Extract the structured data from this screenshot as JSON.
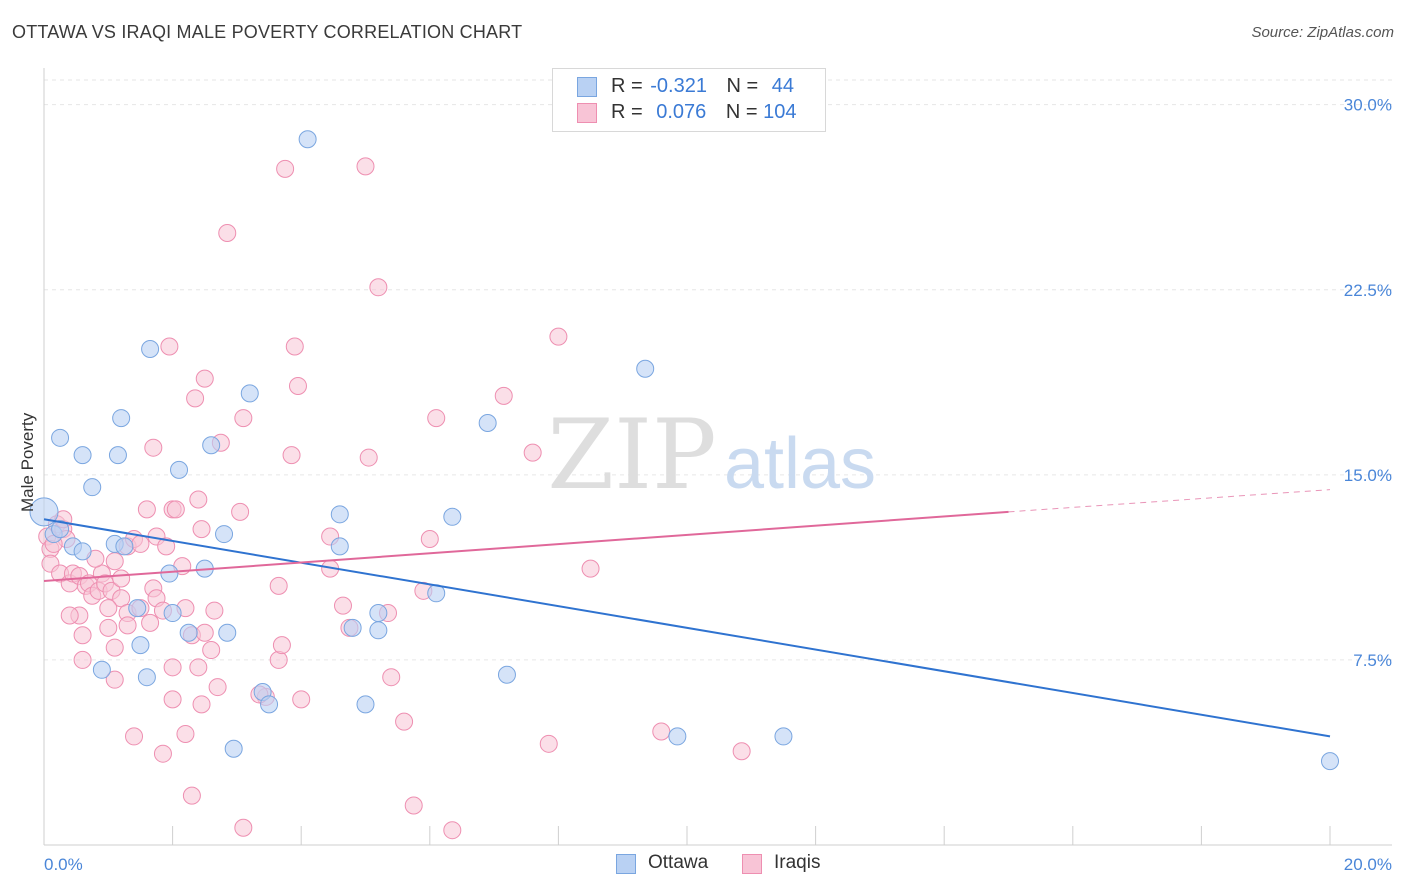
{
  "title": "OTTAWA VS IRAQI MALE POVERTY CORRELATION CHART",
  "source": "Source: ZipAtlas.com",
  "watermark": {
    "zip": "ZIP",
    "atlas": "atlas"
  },
  "legend": {
    "r_label": "R =",
    "n_label": "N =",
    "rows": [
      {
        "r": "-0.321",
        "n": "44"
      },
      {
        "r": "0.076",
        "n": "104"
      }
    ]
  },
  "bottom_legend": [
    "Ottawa",
    "Iraqis"
  ],
  "colors": {
    "ottawa_fill": "#b9d1f3",
    "ottawa_stroke": "#7aa6e0",
    "ottawa_line": "#2f73d0",
    "iraqi_fill": "#f8c4d6",
    "iraqi_stroke": "#ee8fb1",
    "iraqi_line": "#e0689a",
    "tick_label": "#4a86d8",
    "grid": "#e6e6e6"
  },
  "chart_data": {
    "type": "scatter",
    "title": "OTTAWA VS IRAQI MALE POVERTY CORRELATION CHART",
    "xlabel": "",
    "ylabel": "Male Poverty",
    "xlim": [
      0,
      20
    ],
    "ylim": [
      0,
      31
    ],
    "x_tick_labels": [
      "0.0%",
      "20.0%"
    ],
    "y_ticks": [
      7.5,
      15.0,
      22.5,
      30.0
    ],
    "y_tick_labels": [
      "7.5%",
      "15.0%",
      "22.5%",
      "30.0%"
    ],
    "grid": "horizontal dashed",
    "legend_position": "top-center",
    "series": [
      {
        "name": "Ottawa",
        "R": -0.321,
        "N": 44,
        "trend": {
          "x": [
            0.0,
            20.0
          ],
          "y": [
            13.2,
            4.4
          ]
        },
        "points": [
          [
            0.0,
            13.5
          ],
          [
            0.15,
            12.6
          ],
          [
            0.25,
            12.8
          ],
          [
            0.45,
            12.1
          ],
          [
            0.6,
            11.9
          ],
          [
            0.25,
            16.5
          ],
          [
            0.6,
            15.8
          ],
          [
            0.75,
            14.5
          ],
          [
            1.15,
            15.8
          ],
          [
            1.2,
            17.3
          ],
          [
            1.65,
            20.1
          ],
          [
            4.1,
            28.6
          ],
          [
            2.1,
            15.2
          ],
          [
            2.6,
            16.2
          ],
          [
            3.2,
            18.3
          ],
          [
            2.8,
            12.6
          ],
          [
            1.1,
            12.2
          ],
          [
            1.25,
            12.1
          ],
          [
            1.45,
            9.6
          ],
          [
            1.5,
            8.1
          ],
          [
            1.6,
            6.8
          ],
          [
            0.9,
            7.1
          ],
          [
            1.95,
            11.0
          ],
          [
            2.0,
            9.4
          ],
          [
            2.25,
            8.6
          ],
          [
            2.85,
            8.6
          ],
          [
            2.5,
            11.2
          ],
          [
            2.95,
            3.9
          ],
          [
            3.4,
            6.2
          ],
          [
            3.5,
            5.7
          ],
          [
            4.6,
            13.4
          ],
          [
            4.6,
            12.1
          ],
          [
            4.8,
            8.8
          ],
          [
            5.0,
            5.7
          ],
          [
            5.2,
            9.4
          ],
          [
            5.2,
            8.7
          ],
          [
            6.1,
            10.2
          ],
          [
            6.35,
            13.3
          ],
          [
            6.9,
            17.1
          ],
          [
            7.2,
            6.9
          ],
          [
            9.35,
            19.3
          ],
          [
            9.85,
            4.4
          ],
          [
            11.5,
            4.4
          ],
          [
            20.0,
            3.4
          ]
        ]
      },
      {
        "name": "Iraqis",
        "R": 0.076,
        "N": 104,
        "trend": {
          "x": [
            0.0,
            15.0
          ],
          "y": [
            10.7,
            13.5
          ]
        },
        "trend_dashed": {
          "x": [
            15.0,
            20.0
          ],
          "y": [
            13.5,
            14.4
          ]
        },
        "points": [
          [
            0.05,
            12.5
          ],
          [
            0.1,
            12.0
          ],
          [
            0.2,
            13.0
          ],
          [
            0.1,
            11.4
          ],
          [
            0.3,
            12.8
          ],
          [
            0.35,
            12.4
          ],
          [
            0.25,
            11.0
          ],
          [
            0.4,
            10.6
          ],
          [
            0.45,
            11.0
          ],
          [
            0.55,
            10.9
          ],
          [
            0.65,
            10.5
          ],
          [
            0.7,
            10.6
          ],
          [
            0.75,
            10.1
          ],
          [
            0.85,
            10.3
          ],
          [
            0.55,
            9.3
          ],
          [
            0.4,
            9.3
          ],
          [
            0.6,
            8.5
          ],
          [
            0.6,
            7.5
          ],
          [
            0.9,
            11.0
          ],
          [
            0.8,
            11.6
          ],
          [
            0.95,
            10.6
          ],
          [
            1.05,
            10.3
          ],
          [
            1.1,
            11.5
          ],
          [
            1.2,
            10.8
          ],
          [
            1.3,
            12.1
          ],
          [
            1.4,
            12.4
          ],
          [
            1.5,
            12.2
          ],
          [
            1.6,
            13.6
          ],
          [
            1.75,
            12.5
          ],
          [
            1.9,
            12.1
          ],
          [
            2.0,
            13.6
          ],
          [
            2.05,
            13.6
          ],
          [
            1.2,
            10.0
          ],
          [
            1.3,
            9.4
          ],
          [
            1.5,
            9.6
          ],
          [
            1.65,
            9.0
          ],
          [
            1.7,
            10.4
          ],
          [
            1.75,
            10.0
          ],
          [
            1.85,
            9.5
          ],
          [
            1.0,
            9.6
          ],
          [
            1.0,
            8.8
          ],
          [
            1.1,
            8.0
          ],
          [
            1.3,
            8.9
          ],
          [
            1.1,
            6.7
          ],
          [
            1.4,
            4.4
          ],
          [
            1.85,
            3.7
          ],
          [
            2.0,
            7.2
          ],
          [
            2.0,
            5.9
          ],
          [
            2.15,
            11.3
          ],
          [
            2.2,
            9.6
          ],
          [
            2.3,
            8.5
          ],
          [
            2.4,
            7.2
          ],
          [
            2.5,
            8.6
          ],
          [
            2.6,
            7.9
          ],
          [
            2.65,
            9.5
          ],
          [
            2.7,
            6.4
          ],
          [
            2.75,
            16.3
          ],
          [
            2.85,
            24.8
          ],
          [
            2.5,
            18.9
          ],
          [
            2.35,
            18.1
          ],
          [
            2.4,
            14.0
          ],
          [
            2.45,
            12.8
          ],
          [
            1.95,
            20.2
          ],
          [
            1.7,
            16.1
          ],
          [
            2.2,
            4.5
          ],
          [
            2.3,
            2.0
          ],
          [
            2.45,
            5.7
          ],
          [
            3.05,
            13.5
          ],
          [
            3.1,
            17.3
          ],
          [
            3.45,
            6.0
          ],
          [
            3.65,
            10.5
          ],
          [
            3.65,
            7.5
          ],
          [
            3.7,
            8.1
          ],
          [
            3.75,
            27.4
          ],
          [
            3.85,
            15.8
          ],
          [
            3.9,
            20.2
          ],
          [
            3.95,
            18.6
          ],
          [
            3.1,
            0.7
          ],
          [
            3.35,
            6.1
          ],
          [
            4.0,
            5.9
          ],
          [
            4.45,
            12.5
          ],
          [
            4.45,
            11.2
          ],
          [
            4.65,
            9.7
          ],
          [
            4.75,
            8.8
          ],
          [
            5.0,
            27.5
          ],
          [
            5.05,
            15.7
          ],
          [
            5.2,
            22.6
          ],
          [
            5.35,
            9.4
          ],
          [
            5.4,
            6.8
          ],
          [
            5.6,
            5.0
          ],
          [
            5.75,
            1.6
          ],
          [
            5.9,
            10.3
          ],
          [
            6.0,
            12.4
          ],
          [
            6.1,
            17.3
          ],
          [
            6.35,
            0.6
          ],
          [
            7.15,
            18.2
          ],
          [
            7.6,
            15.9
          ],
          [
            7.85,
            4.1
          ],
          [
            8.0,
            20.6
          ],
          [
            8.5,
            11.2
          ],
          [
            9.6,
            4.6
          ],
          [
            10.85,
            3.8
          ],
          [
            0.15,
            12.2
          ],
          [
            0.3,
            13.2
          ]
        ]
      }
    ]
  }
}
